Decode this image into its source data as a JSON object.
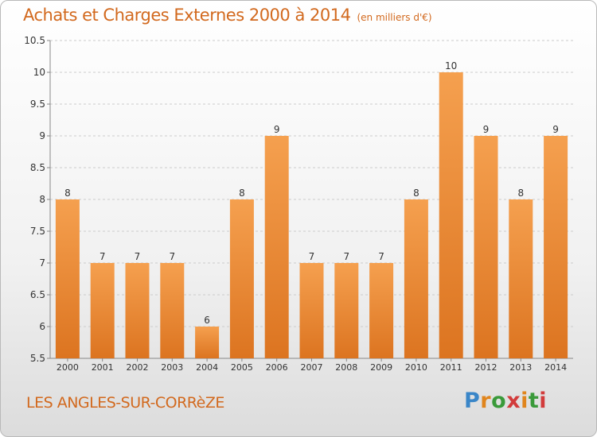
{
  "title": "Achats et Charges Externes 2000 à 2014",
  "unit": "(en milliers d'€)",
  "commune": "LES ANGLES-SUR-CORRèZE",
  "logo": "Proxiti",
  "colors": {
    "title": "#d2691e",
    "bar_top": "#f5a04f",
    "bar_bottom": "#dc7420",
    "grid": "#cccccc",
    "axis_text": "#333333"
  },
  "chart_data": {
    "type": "bar",
    "categories": [
      "2000",
      "2001",
      "2002",
      "2003",
      "2004",
      "2005",
      "2006",
      "2007",
      "2008",
      "2009",
      "2010",
      "2011",
      "2012",
      "2013",
      "2014"
    ],
    "values": [
      8,
      7,
      7,
      7,
      6,
      8,
      9,
      7,
      7,
      7,
      8,
      10,
      9,
      8,
      9
    ],
    "data_labels": [
      "8",
      "7",
      "7",
      "7",
      "6",
      "8",
      "9",
      "7",
      "7",
      "7",
      "8",
      "10",
      "9",
      "8",
      "9"
    ],
    "title": "Achats et Charges Externes 2000 à 2014",
    "xlabel": "",
    "ylabel": "",
    "ylim": [
      5.5,
      10.5
    ],
    "yticks": [
      5.5,
      6,
      6.5,
      7,
      7.5,
      8,
      8.5,
      9,
      9.5,
      10,
      10.5
    ],
    "ytick_labels": [
      "5.5",
      "6",
      "6.5",
      "7",
      "7.5",
      "8",
      "8.5",
      "9",
      "9.5",
      "10",
      "10.5"
    ],
    "grid": "horizontal dashed"
  }
}
